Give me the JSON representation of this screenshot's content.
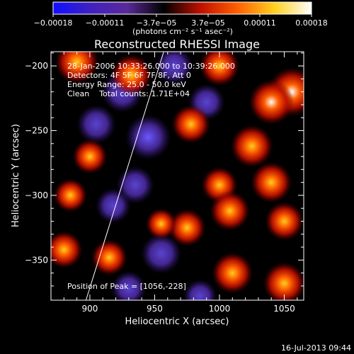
{
  "chart_data": {
    "type": "heatmap",
    "title": "Reconstructed RHESSI Image",
    "xlabel": "Heliocentric X (arcsec)",
    "ylabel": "Heliocentric Y (arcsec)",
    "xlim": [
      870,
      1065
    ],
    "ylim": [
      -381,
      -189
    ],
    "x_ticks": [
      900,
      950,
      1000,
      1050
    ],
    "y_ticks": [
      -200,
      -250,
      -300,
      -350
    ],
    "x_tick_labels": [
      "900",
      "950",
      "1000",
      "1050"
    ],
    "y_tick_labels": [
      "−200",
      "−250",
      "−300",
      "−350"
    ],
    "colorbar": {
      "range": [
        -0.00018,
        0.00018
      ],
      "tick_labels": [
        "−0.00018",
        "−0.00011",
        "−3.7e−05",
        "3.7e−05",
        "0.00011",
        "0.00018"
      ],
      "units_label": "(photons cm⁻² s⁻¹ asec⁻²)",
      "colors": [
        "#1010ff",
        "#4020c0",
        "#5a2a9a",
        "#000000",
        "#c01000",
        "#ff6000",
        "#ffd020",
        "#ffffff"
      ]
    },
    "annotations": [
      "28-Jan-2006 10:33:26.000 to 10:39:26.000",
      "Detectors: 4F 5F 6F 7F 8F, Att 0",
      "Energy Range: 25.0 - 50.0 keV",
      "Clean    Total counts: 1.71E+04"
    ],
    "peak_label": "Position of Peak = [1056,-228]",
    "peak_position": [
      1056,
      -228
    ],
    "limb_line": [
      [
        897,
        -381
      ],
      [
        957,
        -189
      ]
    ],
    "grid": false,
    "blobs": [
      {
        "x": 890,
        "y": -197,
        "v": 0.8
      },
      {
        "x": 932,
        "y": -207,
        "v": 0.7
      },
      {
        "x": 1000,
        "y": -200,
        "v": 0.65
      },
      {
        "x": 1056,
        "y": -220,
        "v": 1.0
      },
      {
        "x": 1040,
        "y": -228,
        "v": 0.85
      },
      {
        "x": 978,
        "y": -245,
        "v": 0.6
      },
      {
        "x": 1025,
        "y": -262,
        "v": 0.75
      },
      {
        "x": 1040,
        "y": -290,
        "v": 0.7
      },
      {
        "x": 1000,
        "y": -292,
        "v": 0.5
      },
      {
        "x": 1008,
        "y": -312,
        "v": 0.65
      },
      {
        "x": 975,
        "y": -325,
        "v": 0.55
      },
      {
        "x": 1050,
        "y": -320,
        "v": 0.6
      },
      {
        "x": 880,
        "y": -342,
        "v": 0.55
      },
      {
        "x": 915,
        "y": -348,
        "v": 0.5
      },
      {
        "x": 1010,
        "y": -360,
        "v": 0.7
      },
      {
        "x": 1050,
        "y": -368,
        "v": 0.75
      },
      {
        "x": 955,
        "y": -322,
        "v": 0.3
      },
      {
        "x": 900,
        "y": -270,
        "v": 0.45
      },
      {
        "x": 885,
        "y": -300,
        "v": 0.4
      },
      {
        "x": 925,
        "y": -220,
        "v": -0.7
      },
      {
        "x": 945,
        "y": -255,
        "v": -0.85
      },
      {
        "x": 905,
        "y": -245,
        "v": -0.6
      },
      {
        "x": 935,
        "y": -292,
        "v": -0.55
      },
      {
        "x": 955,
        "y": -345,
        "v": -0.65
      },
      {
        "x": 918,
        "y": -308,
        "v": -0.45
      },
      {
        "x": 965,
        "y": -200,
        "v": -0.55
      },
      {
        "x": 990,
        "y": -228,
        "v": -0.5
      },
      {
        "x": 985,
        "y": -378,
        "v": -0.4
      },
      {
        "x": 930,
        "y": -372,
        "v": -0.45
      }
    ]
  },
  "footer": {
    "date": "16-Jul-2013 09:44"
  }
}
